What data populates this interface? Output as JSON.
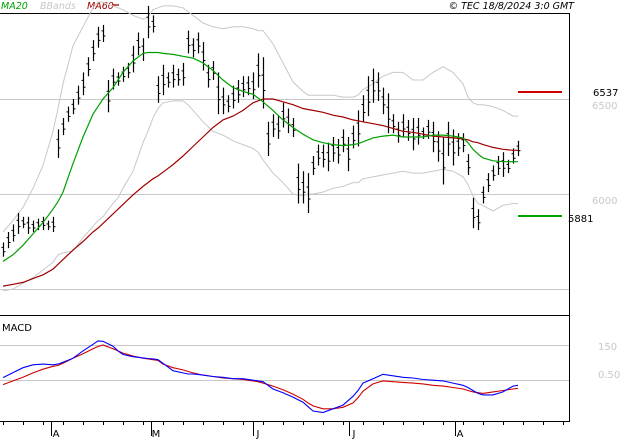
{
  "header": {
    "legend": [
      {
        "label": "MA20",
        "color": "#00a000"
      },
      {
        "label": "BBands",
        "color": "#c8c8c8"
      },
      {
        "label": "MA60",
        "color": "#a00000"
      }
    ],
    "source": "© TEC 18/8/2024 3:0 GMT"
  },
  "price_panel": {
    "ticks": [
      6500,
      6000
    ],
    "tick_labels": [
      "6500",
      "6000"
    ],
    "resistance": {
      "label": "6537",
      "value": 6537,
      "color": "#d00000"
    },
    "support": {
      "label": "5881",
      "value": 5881,
      "color": "#00a000"
    }
  },
  "macd_panel": {
    "title": "MACD",
    "tick_labels": [
      "150",
      "0.50"
    ],
    "colors": {
      "macd": "#0000ff",
      "signal": "#d00000"
    }
  },
  "x_axis": {
    "month_labels": [
      "A",
      "M",
      "J",
      "J",
      "A"
    ]
  },
  "chart_data": {
    "type": "line",
    "title": "",
    "xlabel": "",
    "ylabel": "",
    "ylim": [
      5500,
      7050
    ],
    "grid": true,
    "x": [
      0,
      10,
      20,
      30,
      40,
      50,
      55,
      60,
      70,
      80,
      90,
      95,
      100,
      110,
      115,
      120,
      130,
      140,
      145,
      150,
      155,
      160,
      170,
      180,
      185,
      190,
      200,
      210,
      220,
      230,
      240,
      250,
      255,
      260,
      270,
      280,
      290,
      300,
      305,
      310,
      320,
      330,
      340,
      350,
      355,
      360,
      370,
      380,
      390,
      400,
      410,
      420,
      430,
      440,
      450,
      460,
      465,
      470,
      475,
      480,
      490,
      500,
      510,
      515
    ],
    "series": [
      {
        "name": "MA20",
        "values": [
          5645,
          5680,
          5730,
          5790,
          5850,
          5920,
          5960,
          6010,
          6160,
          6300,
          6420,
          6460,
          6500,
          6560,
          6600,
          6640,
          6700,
          6740,
          6745,
          6745,
          6745,
          6740,
          6735,
          6725,
          6720,
          6715,
          6690,
          6650,
          6600,
          6560,
          6540,
          6525,
          6505,
          6485,
          6440,
          6390,
          6350,
          6315,
          6300,
          6285,
          6270,
          6260,
          6255,
          6260,
          6265,
          6275,
          6295,
          6305,
          6310,
          6300,
          6300,
          6300,
          6310,
          6310,
          6305,
          6295,
          6270,
          6235,
          6210,
          6190,
          6175,
          6170,
          6170,
          6170
        ]
      },
      {
        "name": "MA60",
        "values": [
          5515,
          5525,
          5535,
          5555,
          5575,
          5605,
          5630,
          5655,
          5705,
          5750,
          5800,
          5820,
          5845,
          5895,
          5920,
          5945,
          5995,
          6040,
          6060,
          6080,
          6095,
          6115,
          6155,
          6200,
          6225,
          6250,
          6300,
          6350,
          6390,
          6410,
          6440,
          6480,
          6490,
          6500,
          6500,
          6485,
          6470,
          6450,
          6445,
          6440,
          6430,
          6415,
          6405,
          6390,
          6385,
          6380,
          6370,
          6360,
          6345,
          6330,
          6325,
          6315,
          6305,
          6300,
          6295,
          6290,
          6285,
          6275,
          6270,
          6260,
          6245,
          6235,
          6230,
          6230
        ]
      },
      {
        "name": "BBands upper",
        "values": [
          5800,
          5860,
          5930,
          6030,
          6150,
          6330,
          6450,
          6580,
          6780,
          6880,
          6980,
          7010,
          7010,
          6990,
          6980,
          6970,
          6940,
          6920,
          6930,
          6970,
          6980,
          6990,
          6990,
          6980,
          6960,
          6940,
          6900,
          6880,
          6870,
          6880,
          6880,
          6870,
          6860,
          6860,
          6790,
          6690,
          6590,
          6540,
          6520,
          6520,
          6520,
          6520,
          6510,
          6510,
          6520,
          6550,
          6580,
          6620,
          6640,
          6640,
          6600,
          6600,
          6640,
          6670,
          6640,
          6580,
          6510,
          6480,
          6470,
          6470,
          6460,
          6440,
          6410,
          6410
        ]
      },
      {
        "name": "BBands lower",
        "values": [
          5490,
          5500,
          5530,
          5560,
          5600,
          5640,
          5680,
          5690,
          5700,
          5770,
          5830,
          5860,
          5880,
          5950,
          5980,
          6030,
          6120,
          6270,
          6330,
          6400,
          6450,
          6480,
          6490,
          6490,
          6470,
          6440,
          6380,
          6330,
          6310,
          6280,
          6260,
          6240,
          6220,
          6180,
          6110,
          6060,
          6000,
          5990,
          6000,
          6000,
          6010,
          6030,
          6040,
          6060,
          6060,
          6080,
          6090,
          6100,
          6110,
          6120,
          6110,
          6110,
          6120,
          6130,
          6120,
          6090,
          6050,
          5990,
          5950,
          5940,
          5910,
          5940,
          5950,
          5950
        ]
      },
      {
        "name": "MACD",
        "values": [
          -72,
          -38,
          -5,
          15,
          20,
          15,
          20,
          32,
          60,
          110,
          155,
          178,
          175,
          142,
          110,
          85,
          70,
          62,
          58,
          55,
          50,
          25,
          -25,
          -40,
          -48,
          -48,
          -55,
          -65,
          -70,
          -80,
          -80,
          -90,
          -95,
          -100,
          -150,
          -175,
          -205,
          -240,
          -270,
          -300,
          -310,
          -285,
          -260,
          -200,
          -160,
          -110,
          -80,
          -50,
          -60,
          -70,
          -75,
          -85,
          -90,
          -95,
          -110,
          -125,
          -140,
          -160,
          -180,
          -190,
          -190,
          -170,
          -130,
          -125
        ]
      },
      {
        "name": "Signal",
        "values": [
          -120,
          -95,
          -70,
          -40,
          -15,
          5,
          10,
          25,
          60,
          90,
          125,
          140,
          150,
          125,
          110,
          95,
          75,
          60,
          55,
          50,
          45,
          20,
          -5,
          -20,
          -30,
          -40,
          -55,
          -65,
          -75,
          -80,
          -85,
          -95,
          -100,
          -110,
          -130,
          -155,
          -185,
          -220,
          -245,
          -265,
          -285,
          -285,
          -275,
          -245,
          -210,
          -165,
          -115,
          -95,
          -100,
          -105,
          -110,
          -115,
          -125,
          -130,
          -140,
          -150,
          -160,
          -170,
          -175,
          -180,
          -170,
          -160,
          -150,
          -145
        ]
      }
    ],
    "price_bars": [
      [
        0,
        5745,
        5670
      ],
      [
        5,
        5800,
        5715
      ],
      [
        10,
        5840,
        5750
      ],
      [
        15,
        5900,
        5790
      ],
      [
        20,
        5880,
        5820
      ],
      [
        25,
        5880,
        5790
      ],
      [
        30,
        5860,
        5800
      ],
      [
        35,
        5870,
        5810
      ],
      [
        40,
        5880,
        5810
      ],
      [
        45,
        5860,
        5810
      ],
      [
        50,
        5880,
        5800
      ],
      [
        55,
        6340,
        6190
      ],
      [
        60,
        6400,
        6310
      ],
      [
        65,
        6460,
        6380
      ],
      [
        70,
        6500,
        6420
      ],
      [
        75,
        6570,
        6470
      ],
      [
        80,
        6640,
        6520
      ],
      [
        85,
        6720,
        6620
      ],
      [
        90,
        6810,
        6700
      ],
      [
        95,
        6880,
        6770
      ],
      [
        100,
        6890,
        6800
      ],
      [
        105,
        6600,
        6430
      ],
      [
        110,
        6660,
        6550
      ],
      [
        115,
        6640,
        6570
      ],
      [
        120,
        6670,
        6590
      ],
      [
        125,
        6690,
        6610
      ],
      [
        130,
        6780,
        6640
      ],
      [
        135,
        6850,
        6730
      ],
      [
        140,
        6820,
        6700
      ],
      [
        145,
        6990,
        6820
      ],
      [
        150,
        6940,
        6850
      ],
      [
        155,
        6620,
        6480
      ],
      [
        160,
        6680,
        6520
      ],
      [
        165,
        6640,
        6560
      ],
      [
        170,
        6680,
        6560
      ],
      [
        175,
        6660,
        6570
      ],
      [
        180,
        6690,
        6570
      ],
      [
        185,
        6860,
        6740
      ],
      [
        190,
        6820,
        6720
      ],
      [
        195,
        6850,
        6740
      ],
      [
        200,
        6800,
        6650
      ],
      [
        205,
        6680,
        6560
      ],
      [
        210,
        6700,
        6600
      ],
      [
        215,
        6640,
        6420
      ],
      [
        220,
        6560,
        6420
      ],
      [
        225,
        6520,
        6430
      ],
      [
        230,
        6570,
        6450
      ],
      [
        235,
        6600,
        6480
      ],
      [
        240,
        6620,
        6510
      ],
      [
        245,
        6620,
        6520
      ],
      [
        250,
        6640,
        6500
      ],
      [
        255,
        6740,
        6560
      ],
      [
        260,
        6720,
        6450
      ],
      [
        265,
        6380,
        6200
      ],
      [
        270,
        6420,
        6300
      ],
      [
        275,
        6410,
        6290
      ],
      [
        280,
        6480,
        6350
      ],
      [
        285,
        6450,
        6320
      ],
      [
        290,
        6400,
        6300
      ],
      [
        295,
        6160,
        5950
      ],
      [
        300,
        6120,
        5950
      ],
      [
        305,
        6110,
        5900
      ],
      [
        310,
        6200,
        6100
      ],
      [
        315,
        6260,
        6150
      ],
      [
        320,
        6260,
        6140
      ],
      [
        325,
        6270,
        6120
      ],
      [
        330,
        6300,
        6170
      ],
      [
        335,
        6290,
        6160
      ],
      [
        340,
        6340,
        6220
      ],
      [
        345,
        6300,
        6120
      ],
      [
        350,
        6360,
        6240
      ],
      [
        355,
        6440,
        6250
      ],
      [
        360,
        6520,
        6380
      ],
      [
        365,
        6620,
        6410
      ],
      [
        370,
        6660,
        6480
      ],
      [
        375,
        6640,
        6490
      ],
      [
        380,
        6560,
        6420
      ],
      [
        385,
        6530,
        6320
      ],
      [
        390,
        6420,
        6320
      ],
      [
        395,
        6380,
        6270
      ],
      [
        400,
        6420,
        6300
      ],
      [
        405,
        6390,
        6280
      ],
      [
        410,
        6400,
        6230
      ],
      [
        415,
        6400,
        6260
      ],
      [
        420,
        6350,
        6290
      ],
      [
        425,
        6390,
        6290
      ],
      [
        430,
        6380,
        6220
      ],
      [
        435,
        6330,
        6170
      ],
      [
        440,
        6300,
        6050
      ],
      [
        445,
        6380,
        6200
      ],
      [
        450,
        6340,
        6150
      ],
      [
        455,
        6320,
        6200
      ],
      [
        460,
        6320,
        6220
      ],
      [
        465,
        6210,
        6100
      ],
      [
        470,
        5980,
        5820
      ],
      [
        475,
        5920,
        5810
      ],
      [
        480,
        6040,
        5950
      ],
      [
        485,
        6110,
        6010
      ],
      [
        490,
        6150,
        6070
      ],
      [
        495,
        6200,
        6100
      ],
      [
        500,
        6220,
        6090
      ],
      [
        505,
        6180,
        6110
      ],
      [
        510,
        6240,
        6160
      ],
      [
        515,
        6280,
        6200
      ]
    ],
    "month_x": [
      60,
      160,
      262,
      358,
      464
    ]
  }
}
